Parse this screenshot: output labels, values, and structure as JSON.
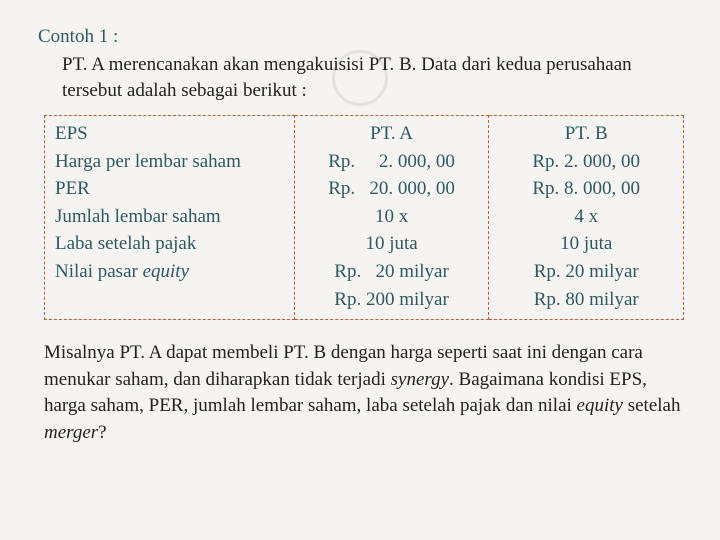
{
  "title": "Contoh 1 :",
  "intro": "PT. A merencanakan akan mengakuisisi PT. B. Data dari kedua perusahaan tersebut adalah sebagai berikut :",
  "table": {
    "header_blank": "",
    "header_a": "PT. A",
    "header_b": "PT. B",
    "rows": [
      {
        "label": "EPS",
        "a": "Rp.     2. 000, 00",
        "b": "Rp. 2. 000, 00"
      },
      {
        "label": "Harga per lembar saham",
        "a": "Rp.   20. 000, 00",
        "b": "Rp. 8. 000, 00"
      },
      {
        "label": "PER",
        "a": "10 x",
        "b": "4 x"
      },
      {
        "label": "Jumlah lembar saham",
        "a": "10 juta",
        "b": "10 juta"
      },
      {
        "label": "Laba setelah pajak",
        "a": "Rp.   20 milyar",
        "b": "Rp. 20 milyar"
      },
      {
        "label": "Nilai pasar equity",
        "a": "Rp. 200 milyar",
        "b": "Rp. 80 milyar",
        "label_italic_word": "equity"
      }
    ]
  },
  "question_parts": {
    "p1": "Misalnya PT. A dapat membeli PT. B dengan harga seperti saat ini dengan cara menukar saham, dan diharapkan tidak terjadi ",
    "i1": "synergy",
    "p2": ". Bagaimana kondisi EPS, harga saham, PER, jumlah lembar saham, laba setelah pajak dan nilai ",
    "i2": "equity",
    "p3": " setelah ",
    "i3": "merger",
    "p4": "?"
  },
  "colors": {
    "background": "#f6f4f2",
    "accent_text": "#2e5a5c",
    "body_text": "#222222",
    "table_border": "#c05a2a",
    "watermark": "rgba(0,0,0,0.07)"
  },
  "typography": {
    "family": "Georgia serif",
    "title_size_pt": 14,
    "body_size_pt": 14
  }
}
